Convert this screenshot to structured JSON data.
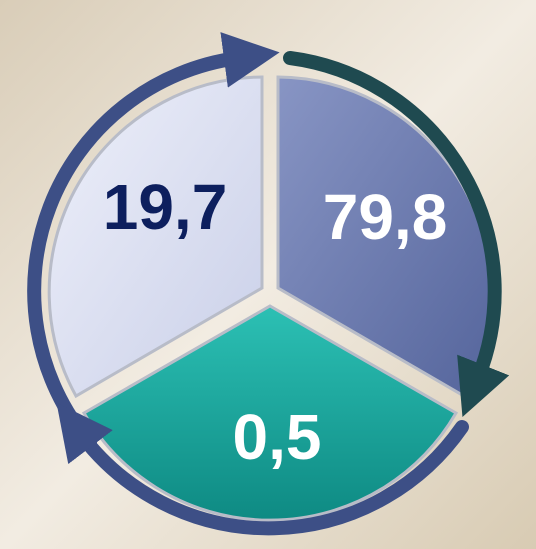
{
  "segments": [
    {
      "label": "19,7"
    },
    {
      "label": "79,8"
    },
    {
      "label": "0,5"
    }
  ]
}
